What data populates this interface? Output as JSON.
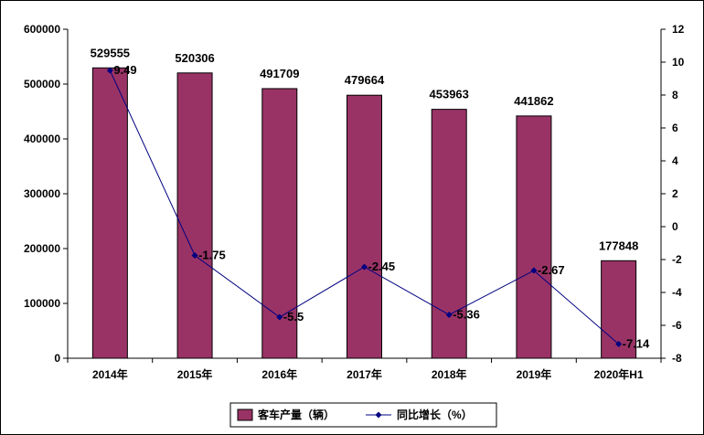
{
  "chart_data": {
    "type": "bar",
    "categories": [
      "2014年",
      "2015年",
      "2016年",
      "2017年",
      "2018年",
      "2019年",
      "2020年H1"
    ],
    "series": [
      {
        "name": "客车产量（辆）",
        "type": "bar",
        "axis": "left",
        "color": "#993366",
        "values": [
          529555,
          520306,
          491709,
          479664,
          453963,
          441862,
          177848
        ],
        "labels": [
          "529555",
          "520306",
          "491709",
          "479664",
          "453963",
          "441862",
          "177848"
        ]
      },
      {
        "name": "同比增长（%）",
        "type": "line",
        "axis": "right",
        "color": "#000080",
        "values": [
          9.49,
          -1.75,
          -5.5,
          -2.45,
          -5.36,
          -2.67,
          -7.14
        ],
        "labels": [
          "9.49",
          "-1.75",
          "-5.5",
          "-2.45",
          "-5.36",
          "-2.67",
          "-7.14"
        ]
      }
    ],
    "y_left": {
      "range": [
        0,
        600000
      ],
      "ticks": [
        "0",
        "100000",
        "200000",
        "300000",
        "400000",
        "500000",
        "600000"
      ]
    },
    "y_right": {
      "range": [
        -8,
        12
      ],
      "ticks": [
        "-8",
        "-6",
        "-4",
        "-2",
        "0",
        "2",
        "4",
        "6",
        "8",
        "10",
        "12"
      ]
    },
    "legend_position": "bottom",
    "grid": false
  }
}
